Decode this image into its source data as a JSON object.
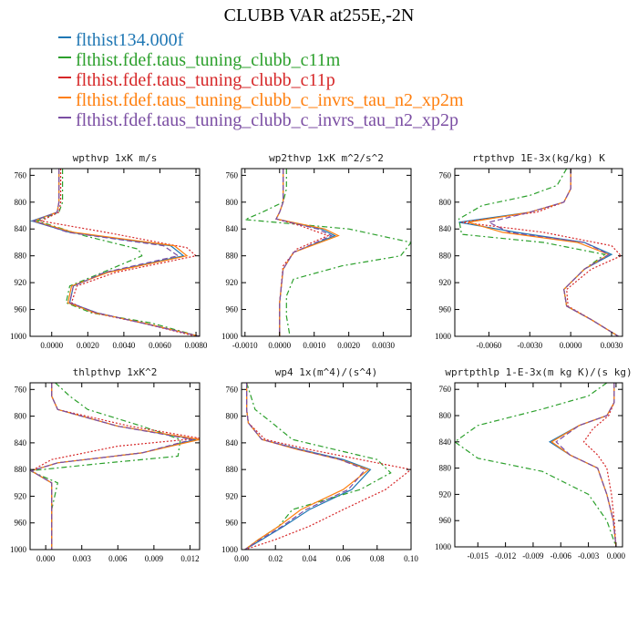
{
  "title": "CLUBB VAR at255E,-2N",
  "legend": [
    {
      "label": "flthist134.000f",
      "color": "#1f77b4"
    },
    {
      "label": "flthist.fdef.taus_tuning_clubb_c11m",
      "color": "#2ca02c"
    },
    {
      "label": "flthist.fdef.taus_tuning_clubb_c11p",
      "color": "#d62728"
    },
    {
      "label": "flthist.fdef.taus_tuning_clubb_c_invrs_tau_n2_xp2m",
      "color": "#ff7f0e"
    },
    {
      "label": "flthist.fdef.taus_tuning_clubb_c_invrs_tau_n2_xp2p",
      "color": "#7b4ea3"
    }
  ],
  "chart_data": [
    {
      "type": "line",
      "title": "wpthvp  1xK m/s",
      "xlim": [
        -0.0012,
        0.0082
      ],
      "ylim": [
        1000,
        750
      ],
      "yticks": [
        760,
        800,
        840,
        880,
        920,
        960,
        1000
      ],
      "xticks": [
        0.0,
        0.002,
        0.004,
        0.006,
        0.008
      ],
      "xtick_labels": [
        "0.0000",
        "0.0020",
        "0.0040",
        "0.0060",
        "0.0080"
      ],
      "series": [
        {
          "x": [
            0.0004,
            0.0004,
            0.0004,
            0.0003,
            -0.0011,
            0.001,
            0.0066,
            0.0073,
            0.003,
            0.0012,
            0.001,
            0.0025,
            0.005,
            0.0082
          ],
          "y": [
            750,
            780,
            800,
            815,
            828,
            845,
            865,
            880,
            905,
            925,
            950,
            965,
            980,
            1000
          ]
        },
        {
          "x": [
            0.0006,
            0.0006,
            0.0006,
            0.0004,
            -0.0008,
            0.0018,
            0.0048,
            0.005,
            0.0028,
            0.001,
            0.0008,
            0.0022,
            0.0055,
            0.0082
          ],
          "y": [
            750,
            780,
            800,
            815,
            828,
            850,
            870,
            880,
            905,
            925,
            950,
            965,
            980,
            1000
          ]
        },
        {
          "x": [
            0.0005,
            0.0005,
            0.0005,
            0.0004,
            -0.0006,
            0.003,
            0.0075,
            0.008,
            0.0035,
            0.0014,
            0.0011,
            0.0023,
            0.005,
            0.008
          ],
          "y": [
            750,
            780,
            800,
            815,
            828,
            845,
            868,
            880,
            905,
            925,
            950,
            965,
            980,
            1000
          ]
        },
        {
          "x": [
            0.0004,
            0.0004,
            0.0004,
            0.0003,
            -0.001,
            0.0012,
            0.0068,
            0.0075,
            0.0031,
            0.0011,
            0.0009,
            0.0024,
            0.0051,
            0.0082
          ],
          "y": [
            750,
            780,
            800,
            815,
            828,
            845,
            865,
            880,
            905,
            925,
            950,
            965,
            980,
            1000
          ]
        },
        {
          "x": [
            0.0004,
            0.0004,
            0.0004,
            0.0003,
            -0.001,
            0.0009,
            0.0062,
            0.007,
            0.0029,
            0.0012,
            0.001,
            0.0025,
            0.005,
            0.0082
          ],
          "y": [
            750,
            780,
            800,
            815,
            828,
            845,
            865,
            880,
            905,
            925,
            950,
            965,
            980,
            1000
          ]
        }
      ]
    },
    {
      "type": "line",
      "title": "wp2thvp  1xK m^2/s^2",
      "xlim": [
        -0.0011,
        0.0038
      ],
      "ylim": [
        1000,
        750
      ],
      "yticks": [
        760,
        800,
        840,
        880,
        920,
        960,
        1000
      ],
      "xticks": [
        -0.001,
        0.0,
        0.001,
        0.002,
        0.003
      ],
      "xtick_labels": [
        "-0.0010",
        "0.0000",
        "0.0010",
        "0.0020",
        "0.0030"
      ],
      "series": [
        {
          "x": [
            0.0001,
            0.0001,
            0.0001,
            0.0,
            -0.0001,
            0.0012,
            0.0016,
            0.0004,
            0.0001,
            0.0,
            0.0
          ],
          "y": [
            750,
            780,
            800,
            815,
            825,
            840,
            850,
            875,
            900,
            950,
            1000
          ]
        },
        {
          "x": [
            0.0002,
            0.0002,
            0.0001,
            -0.0005,
            -0.001,
            0.002,
            0.0038,
            0.0035,
            0.0018,
            0.0004,
            0.0002,
            0.0002,
            0.0003
          ],
          "y": [
            750,
            780,
            800,
            815,
            826,
            840,
            860,
            880,
            895,
            915,
            940,
            970,
            1000
          ]
        },
        {
          "x": [
            0.0001,
            0.0001,
            0.0001,
            0.0,
            -0.0001,
            0.0006,
            0.0014,
            0.0005,
            0.0001,
            0.0,
            0.0
          ],
          "y": [
            750,
            780,
            800,
            815,
            825,
            835,
            850,
            870,
            895,
            950,
            1000
          ]
        },
        {
          "x": [
            0.0001,
            0.0001,
            0.0001,
            0.0,
            -0.0001,
            0.0013,
            0.0017,
            0.0004,
            0.0001,
            0.0,
            0.0
          ],
          "y": [
            750,
            780,
            800,
            815,
            825,
            840,
            850,
            875,
            900,
            950,
            1000
          ]
        },
        {
          "x": [
            0.0001,
            0.0001,
            0.0001,
            0.0,
            -0.0001,
            0.0011,
            0.0015,
            0.0004,
            0.0001,
            0.0,
            0.0
          ],
          "y": [
            750,
            780,
            800,
            815,
            825,
            840,
            850,
            875,
            900,
            950,
            1000
          ]
        }
      ]
    },
    {
      "type": "line",
      "title": "rtpthvp  1E-3x(kg/kg) K",
      "xlim": [
        -0.0085,
        0.0038
      ],
      "ylim": [
        1000,
        750
      ],
      "yticks": [
        760,
        800,
        840,
        880,
        920,
        960,
        1000
      ],
      "xticks": [
        -0.006,
        -0.003,
        0.0,
        0.003
      ],
      "xtick_labels": [
        "-0.0060",
        "-0.0030",
        "0.0000",
        "0.0030"
      ],
      "series": [
        {
          "x": [
            0.0,
            0.0,
            -0.0005,
            -0.003,
            -0.0082,
            -0.004,
            0.001,
            0.003,
            0.001,
            -0.0005,
            -0.0003,
            0.0015,
            0.0035
          ],
          "y": [
            750,
            780,
            800,
            815,
            830,
            845,
            860,
            878,
            900,
            930,
            955,
            975,
            1000
          ]
        },
        {
          "x": [
            -0.0003,
            -0.001,
            -0.003,
            -0.0065,
            -0.0082,
            -0.008,
            -0.002,
            0.0025,
            0.001,
            -0.0005,
            -0.0003,
            0.0015,
            0.0035
          ],
          "y": [
            750,
            775,
            790,
            805,
            825,
            848,
            860,
            878,
            900,
            930,
            955,
            975,
            1000
          ]
        },
        {
          "x": [
            0.0,
            0.0,
            -0.0005,
            -0.0025,
            -0.008,
            -0.002,
            0.003,
            0.0037,
            0.0015,
            -0.0003,
            -0.0002,
            0.0015,
            0.0035
          ],
          "y": [
            750,
            780,
            800,
            815,
            830,
            845,
            865,
            880,
            900,
            930,
            955,
            975,
            1000
          ]
        },
        {
          "x": [
            0.0,
            0.0,
            -0.0005,
            -0.003,
            -0.0075,
            -0.005,
            0.0005,
            0.0028,
            0.001,
            -0.0005,
            -0.0003,
            0.0015,
            0.0035
          ],
          "y": [
            750,
            780,
            800,
            815,
            830,
            845,
            860,
            878,
            900,
            930,
            955,
            975,
            1000
          ]
        },
        {
          "x": [
            0.0,
            0.0,
            -0.0005,
            -0.003,
            -0.006,
            -0.0045,
            0.001,
            0.0028,
            0.001,
            -0.0005,
            -0.0003,
            0.0015,
            0.0035
          ],
          "y": [
            750,
            780,
            800,
            815,
            830,
            845,
            860,
            878,
            900,
            930,
            955,
            975,
            1000
          ]
        }
      ]
    },
    {
      "type": "line",
      "title": "thlpthvp  1xK^2",
      "xlim": [
        -0.0013,
        0.0128
      ],
      "ylim": [
        1000,
        750
      ],
      "yticks": [
        760,
        800,
        840,
        880,
        920,
        960,
        1000
      ],
      "xticks": [
        0.0,
        0.003,
        0.006,
        0.009,
        0.012
      ],
      "xtick_labels": [
        "0.000",
        "0.003",
        "0.006",
        "0.009",
        "0.012"
      ],
      "series": [
        {
          "x": [
            0.0005,
            0.0005,
            0.001,
            0.006,
            0.0125,
            0.008,
            0.001,
            -0.0012,
            0.0005,
            0.0005,
            0.0005,
            0.0005
          ],
          "y": [
            750,
            770,
            790,
            815,
            835,
            855,
            870,
            882,
            900,
            940,
            970,
            1000
          ]
        },
        {
          "x": [
            0.0008,
            0.002,
            0.0035,
            0.008,
            0.0112,
            0.011,
            0.004,
            -0.0013,
            0.001,
            0.0005,
            0.0005,
            0.0005
          ],
          "y": [
            750,
            770,
            790,
            815,
            835,
            860,
            872,
            882,
            900,
            940,
            970,
            1000
          ]
        },
        {
          "x": [
            0.0005,
            0.0005,
            0.001,
            0.007,
            0.0128,
            0.006,
            0.0005,
            -0.0012,
            0.0005,
            0.0005,
            0.0005,
            0.0005
          ],
          "y": [
            750,
            770,
            790,
            815,
            833,
            845,
            865,
            882,
            900,
            940,
            970,
            1000
          ]
        },
        {
          "x": [
            0.0005,
            0.0005,
            0.001,
            0.006,
            0.0128,
            0.008,
            0.001,
            -0.0012,
            0.0005,
            0.0005,
            0.0005,
            0.0005
          ],
          "y": [
            750,
            770,
            790,
            815,
            835,
            855,
            870,
            882,
            900,
            940,
            970,
            1000
          ]
        },
        {
          "x": [
            0.0005,
            0.0005,
            0.001,
            0.006,
            0.0122,
            0.008,
            0.001,
            -0.0012,
            0.0005,
            0.0005,
            0.0005,
            0.0005
          ],
          "y": [
            750,
            770,
            790,
            815,
            835,
            855,
            870,
            882,
            900,
            940,
            970,
            1000
          ]
        }
      ]
    },
    {
      "type": "line",
      "title": "wp4  1x(m^4)/(s^4)",
      "xlim": [
        0.0,
        0.1
      ],
      "ylim": [
        1000,
        750
      ],
      "yticks": [
        760,
        800,
        840,
        880,
        920,
        960,
        1000
      ],
      "xticks": [
        0.0,
        0.02,
        0.04,
        0.06,
        0.08,
        0.1
      ],
      "xtick_labels": [
        "0.00",
        "0.02",
        "0.04",
        "0.06",
        "0.08",
        "0.10"
      ],
      "series": [
        {
          "x": [
            0.003,
            0.003,
            0.004,
            0.012,
            0.035,
            0.06,
            0.076,
            0.065,
            0.04,
            0.025,
            0.012,
            0.002
          ],
          "y": [
            750,
            790,
            810,
            835,
            850,
            865,
            880,
            910,
            940,
            965,
            985,
            1000
          ]
        },
        {
          "x": [
            0.003,
            0.008,
            0.018,
            0.03,
            0.055,
            0.08,
            0.088,
            0.07,
            0.03,
            0.022,
            0.01,
            0.002
          ],
          "y": [
            750,
            790,
            810,
            835,
            850,
            865,
            885,
            910,
            940,
            965,
            985,
            1000
          ]
        },
        {
          "x": [
            0.003,
            0.003,
            0.004,
            0.014,
            0.04,
            0.07,
            0.1,
            0.085,
            0.06,
            0.04,
            0.02,
            0.002
          ],
          "y": [
            750,
            790,
            810,
            835,
            850,
            865,
            880,
            910,
            940,
            965,
            985,
            1000
          ]
        },
        {
          "x": [
            0.003,
            0.003,
            0.004,
            0.012,
            0.033,
            0.058,
            0.075,
            0.06,
            0.035,
            0.022,
            0.01,
            0.002
          ],
          "y": [
            750,
            790,
            810,
            835,
            850,
            865,
            880,
            910,
            940,
            965,
            985,
            1000
          ]
        },
        {
          "x": [
            0.003,
            0.003,
            0.004,
            0.012,
            0.034,
            0.058,
            0.073,
            0.063,
            0.038,
            0.024,
            0.011,
            0.002
          ],
          "y": [
            750,
            790,
            810,
            835,
            850,
            865,
            880,
            910,
            940,
            965,
            985,
            1000
          ]
        }
      ]
    },
    {
      "type": "line",
      "title": "wprtpthlp  1-E-3x(m kg K)/(s kg)",
      "xlim": [
        -0.0175,
        0.0007
      ],
      "ylim": [
        1000,
        750
      ],
      "yticks": [
        760,
        800,
        840,
        880,
        920,
        960,
        1000
      ],
      "xticks": [
        -0.015,
        -0.012,
        -0.009,
        -0.006,
        -0.003,
        0.0
      ],
      "xtick_labels": [
        "-0.015",
        "-0.012",
        "-0.009",
        "-0.006",
        "-0.003",
        "0.000"
      ],
      "series": [
        {
          "x": [
            -0.0002,
            -0.0002,
            -0.001,
            -0.004,
            -0.0072,
            -0.005,
            -0.002,
            -0.001,
            -0.0003,
            0.0
          ],
          "y": [
            750,
            780,
            800,
            815,
            840,
            860,
            880,
            920,
            960,
            1000
          ]
        },
        {
          "x": [
            -0.001,
            -0.003,
            -0.008,
            -0.015,
            -0.0175,
            -0.015,
            -0.008,
            -0.003,
            -0.001,
            0.0
          ],
          "y": [
            750,
            770,
            790,
            815,
            840,
            865,
            885,
            920,
            960,
            1000
          ]
        },
        {
          "x": [
            -0.0002,
            -0.0002,
            -0.0008,
            -0.0025,
            -0.0035,
            -0.002,
            -0.001,
            -0.0005,
            -0.0002,
            0.0
          ],
          "y": [
            750,
            780,
            800,
            820,
            840,
            860,
            880,
            920,
            960,
            1000
          ]
        },
        {
          "x": [
            -0.0002,
            -0.0002,
            -0.001,
            -0.004,
            -0.007,
            -0.005,
            -0.002,
            -0.001,
            -0.0003,
            0.0
          ],
          "y": [
            750,
            780,
            800,
            815,
            840,
            860,
            880,
            920,
            960,
            1000
          ]
        },
        {
          "x": [
            -0.0002,
            -0.0002,
            -0.001,
            -0.004,
            -0.0065,
            -0.005,
            -0.002,
            -0.001,
            -0.0003,
            0.0
          ],
          "y": [
            750,
            780,
            800,
            815,
            840,
            860,
            880,
            920,
            960,
            1000
          ]
        }
      ]
    }
  ]
}
